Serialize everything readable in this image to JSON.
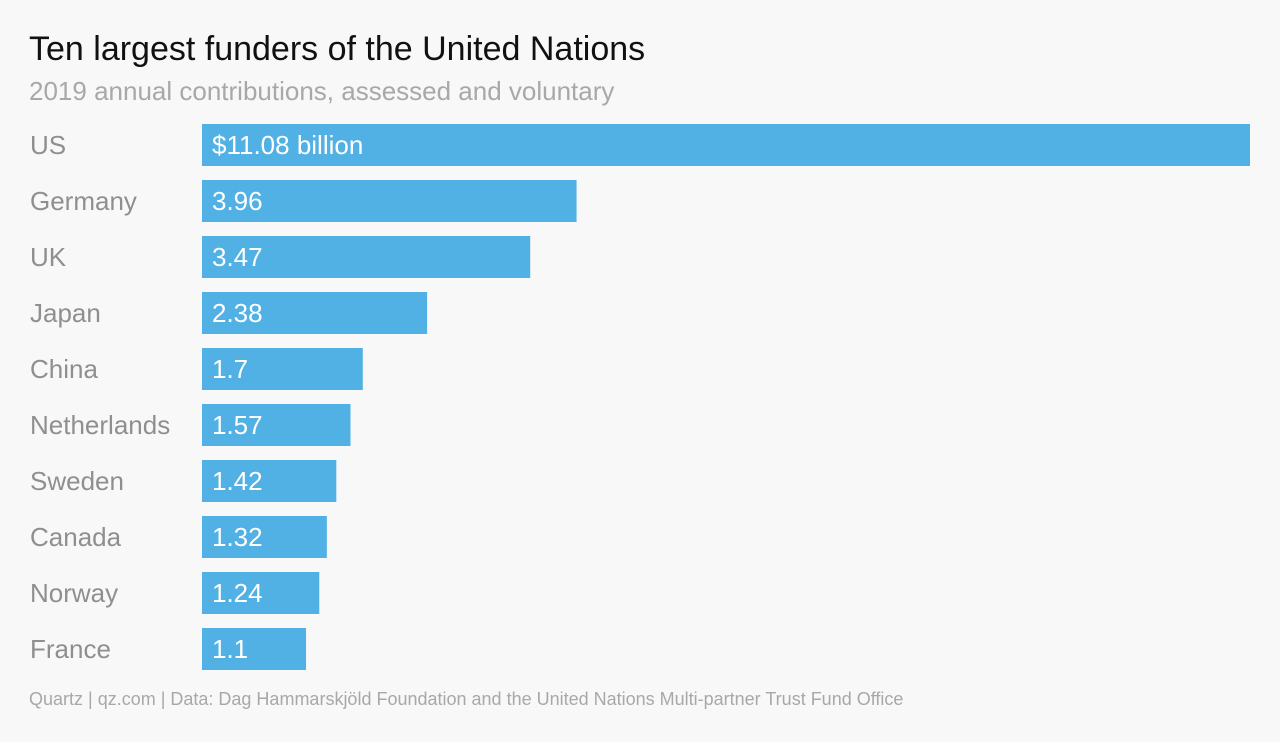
{
  "title": "Ten largest funders of the United Nations",
  "subtitle": "2019 annual contributions, assessed and voluntary",
  "source": "Quartz | qz.com | Data: Dag Hammarskjöld Foundation and the United Nations Multi-partner Trust Fund Office",
  "colors": {
    "bar": "#52b1e4",
    "bar_label": "#ffffff",
    "category_label": "#8f8f8f",
    "background": "#f8f8f8"
  },
  "chart_data": {
    "type": "bar",
    "orientation": "horizontal",
    "categories": [
      "US",
      "Germany",
      "UK",
      "Japan",
      "China",
      "Netherlands",
      "Sweden",
      "Canada",
      "Norway",
      "France"
    ],
    "values": [
      11.08,
      3.96,
      3.47,
      2.38,
      1.7,
      1.57,
      1.42,
      1.32,
      1.24,
      1.1
    ],
    "value_labels": [
      "$11.08 billion",
      "3.96",
      "3.47",
      "2.38",
      "1.7",
      "1.57",
      "1.42",
      "1.32",
      "1.24",
      "1.1"
    ],
    "title": "Ten largest funders of the United Nations",
    "subtitle": "2019 annual contributions, assessed and voluntary",
    "xlabel": "",
    "ylabel": "",
    "xlim": [
      0,
      11.08
    ],
    "grid": false,
    "legend": "none"
  }
}
